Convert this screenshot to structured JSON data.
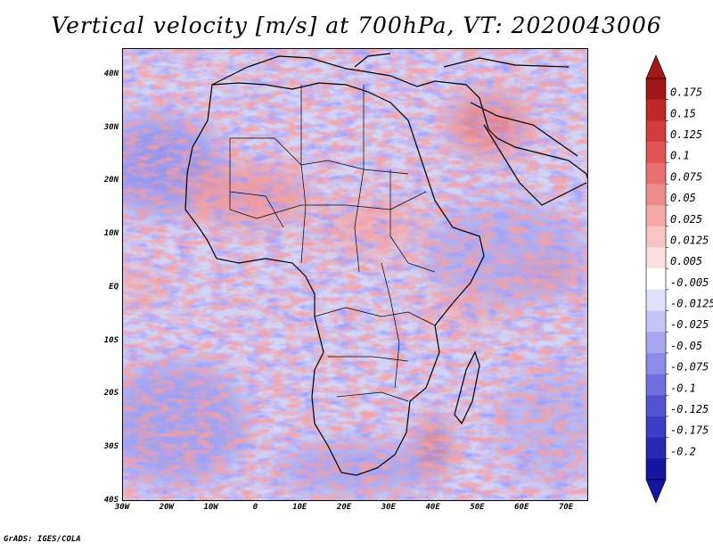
{
  "title": "Vertical velocity [m/s] at 700hPa, VT: 2020043006",
  "footer": "GrADS: IGES/COLA",
  "latitude_ticks": [
    "40N",
    "30N",
    "20N",
    "10N",
    "EQ",
    "10S",
    "20S",
    "30S",
    "40S"
  ],
  "longitude_ticks": [
    "30W",
    "20W",
    "10W",
    "0",
    "10E",
    "20E",
    "30E",
    "40E",
    "50E",
    "60E",
    "70E"
  ],
  "map_extent": {
    "lon_min": -30,
    "lon_max": 75,
    "lat_min": -40,
    "lat_max": 45
  },
  "colorbar": {
    "labels": [
      "0.175",
      "0.15",
      "0.125",
      "0.1",
      "0.075",
      "0.05",
      "0.025",
      "0.0125",
      "0.005",
      "-0.005",
      "-0.0125",
      "-0.025",
      "-0.05",
      "-0.075",
      "-0.1",
      "-0.125",
      "-0.175",
      "-0.2"
    ],
    "colors": [
      "#a01818",
      "#c02828",
      "#d23c3c",
      "#e05454",
      "#e87070",
      "#ef8c8c",
      "#f4a8a8",
      "#f8c4c4",
      "#fbe0e0",
      "#ffffff",
      "#e0e0fb",
      "#c4c4f6",
      "#a8a8f0",
      "#8c8ce8",
      "#7070de",
      "#5454d2",
      "#3c3cc6",
      "#2828b4",
      "#1414a0"
    ]
  }
}
